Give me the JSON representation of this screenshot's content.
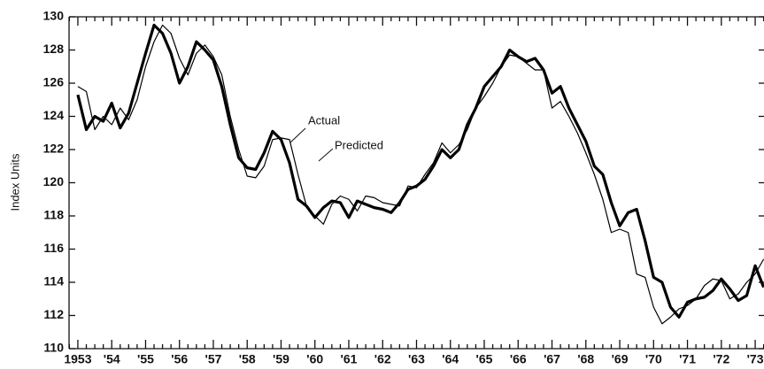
{
  "chart_data": {
    "type": "line",
    "ylabel": "Index Units",
    "annotations": [
      "Actual",
      "Predicted"
    ],
    "x": [
      1953,
      1953.25,
      1953.5,
      1953.75,
      1954,
      1954.25,
      1954.5,
      1954.75,
      1955,
      1955.25,
      1955.5,
      1955.75,
      1956,
      1956.25,
      1956.5,
      1956.75,
      1957,
      1957.25,
      1957.5,
      1957.75,
      1958,
      1958.25,
      1958.5,
      1958.75,
      1959,
      1959.25,
      1959.5,
      1959.75,
      1960,
      1960.25,
      1960.5,
      1960.75,
      1961,
      1961.25,
      1961.5,
      1961.75,
      1962,
      1962.25,
      1962.5,
      1962.75,
      1963,
      1963.25,
      1963.5,
      1963.75,
      1964,
      1964.25,
      1964.5,
      1964.75,
      1965,
      1965.25,
      1965.5,
      1965.75,
      1966,
      1966.25,
      1966.5,
      1966.75,
      1967,
      1967.25,
      1967.5,
      1967.75,
      1968,
      1968.25,
      1968.5,
      1968.75,
      1969,
      1969.25,
      1969.5,
      1969.75,
      1970,
      1970.25,
      1970.5,
      1970.75,
      1971,
      1971.25,
      1971.5,
      1971.75,
      1972,
      1972.25,
      1972.5,
      1972.75,
      1973,
      1973.25
    ],
    "series": [
      {
        "name": "Actual",
        "color": "#000000",
        "width": 3.2,
        "values": [
          125.3,
          123.2,
          124.0,
          123.7,
          124.8,
          123.3,
          124.2,
          126.0,
          127.8,
          129.5,
          129.0,
          127.8,
          126.0,
          127.0,
          128.5,
          128.0,
          127.4,
          125.8,
          123.5,
          121.5,
          120.9,
          120.8,
          121.8,
          123.1,
          122.6,
          121.2,
          119.0,
          118.6,
          117.9,
          118.5,
          118.9,
          118.8,
          117.9,
          118.9,
          118.7,
          118.5,
          118.4,
          118.2,
          118.8,
          119.6,
          119.8,
          120.2,
          121.0,
          122.0,
          121.5,
          122.0,
          123.5,
          124.5,
          125.8,
          126.4,
          127.0,
          128.0,
          127.6,
          127.3,
          127.5,
          126.8,
          125.4,
          125.8,
          124.5,
          123.5,
          122.5,
          121.0,
          120.5,
          118.8,
          117.4,
          118.2,
          118.4,
          116.5,
          114.3,
          114.0,
          112.5,
          111.9,
          112.8,
          113.0,
          113.1,
          113.5,
          114.2,
          113.6,
          112.9,
          113.2,
          115.0,
          113.7
        ]
      },
      {
        "name": "Predicted",
        "color": "#000000",
        "width": 1.2,
        "values": [
          125.8,
          125.5,
          123.2,
          124.0,
          123.5,
          124.5,
          123.8,
          125.0,
          127.0,
          128.5,
          129.5,
          129.0,
          127.5,
          126.5,
          127.8,
          128.3,
          127.6,
          126.5,
          124.0,
          122.0,
          120.4,
          120.3,
          121.0,
          122.6,
          122.7,
          122.6,
          120.5,
          118.6,
          118.0,
          117.5,
          118.7,
          119.2,
          119.0,
          118.3,
          119.2,
          119.1,
          118.8,
          118.7,
          118.6,
          119.8,
          119.7,
          120.5,
          121.2,
          122.4,
          121.8,
          122.3,
          123.2,
          124.5,
          125.2,
          126.0,
          127.0,
          127.7,
          127.6,
          127.2,
          126.8,
          126.8,
          124.5,
          124.9,
          124.0,
          123.0,
          121.8,
          120.5,
          119.0,
          117.0,
          117.2,
          117.0,
          114.5,
          114.3,
          112.5,
          111.5,
          111.9,
          112.4,
          112.6,
          113.0,
          113.8,
          114.2,
          114.1,
          113.0,
          113.3,
          114.0,
          114.5,
          115.4
        ]
      }
    ],
    "xlim": [
      1952.74,
      1973.26
    ],
    "xticks": [
      1953,
      {
        "value": 1954,
        "label": "'54"
      },
      {
        "value": 1955,
        "label": "'55"
      },
      {
        "value": 1956,
        "label": "'56"
      },
      {
        "value": 1957,
        "label": "'57"
      },
      {
        "value": 1958,
        "label": "'58"
      },
      {
        "value": 1959,
        "label": "'59"
      },
      {
        "value": 1960,
        "label": "'60"
      },
      {
        "value": 1961,
        "label": "'61"
      },
      {
        "value": 1962,
        "label": "'62"
      },
      {
        "value": 1963,
        "label": "'63"
      },
      {
        "value": 1964,
        "label": "'64"
      },
      {
        "value": 1965,
        "label": "'65"
      },
      {
        "value": 1966,
        "label": "'66"
      },
      {
        "value": 1967,
        "label": "'67"
      },
      {
        "value": 1968,
        "label": "'68"
      },
      {
        "value": 1969,
        "label": "'69"
      },
      {
        "value": 1970,
        "label": "'70"
      },
      {
        "value": 1971,
        "label": "'71"
      },
      {
        "value": 1972,
        "label": "'72"
      },
      {
        "value": 1973,
        "label": "'73"
      }
    ],
    "ylim": [
      110,
      130
    ],
    "yticks": [
      110,
      112,
      114,
      116,
      118,
      120,
      122,
      124,
      126,
      128,
      130
    ],
    "grid": false
  }
}
